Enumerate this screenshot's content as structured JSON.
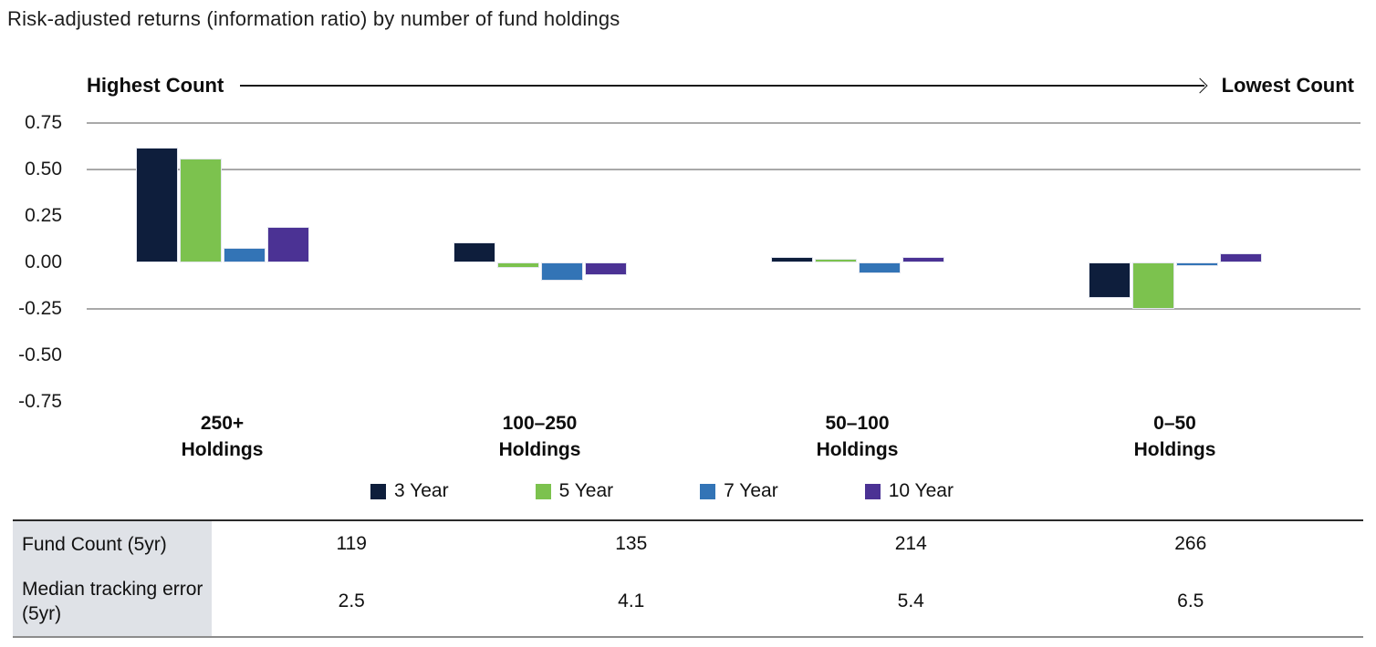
{
  "chart_data": {
    "type": "bar",
    "title": "Risk-adjusted returns (information ratio) by number of fund holdings",
    "axis_header": {
      "left": "Highest Count",
      "right": "Lowest Count"
    },
    "categories": [
      "250+ Holdings",
      "100–250 Holdings",
      "50–100 Holdings",
      "0–50 Holdings"
    ],
    "series": [
      {
        "name": "3 Year",
        "color": "#0e1e3c",
        "values": [
          0.62,
          0.11,
          0.03,
          -0.19
        ]
      },
      {
        "name": "5 Year",
        "color": "#7cc24e",
        "values": [
          0.56,
          -0.03,
          0.02,
          -0.25
        ]
      },
      {
        "name": "7 Year",
        "color": "#3374b6",
        "values": [
          0.08,
          -0.1,
          -0.06,
          -0.02
        ]
      },
      {
        "name": "10 Year",
        "color": "#4b3294",
        "values": [
          0.19,
          -0.07,
          0.03,
          0.05
        ]
      }
    ],
    "ylabel": "",
    "yticks": [
      0.75,
      0.5,
      0.25,
      0,
      -0.25,
      -0.5,
      -0.75
    ],
    "ytick_labels": [
      "0.75",
      "0.50",
      "0.25",
      "0.00",
      "-0.25",
      "-0.50",
      "-0.75"
    ],
    "gridlines_at": [
      0.75,
      0.5,
      -0.25
    ],
    "ylim": [
      -0.85,
      0.8
    ],
    "legend_position": "bottom",
    "table": {
      "rows": [
        {
          "label": "Fund Count (5yr)",
          "values": [
            "119",
            "135",
            "214",
            "266"
          ]
        },
        {
          "label": "Median tracking error (5yr)",
          "values": [
            "2.5",
            "4.1",
            "5.4",
            "6.5"
          ]
        }
      ]
    }
  },
  "colors": {
    "gridline": "#a9a9a9",
    "bar_stroke": "#e3e6ef",
    "table_header_bg": "#dfe2e7",
    "table_border_top": "#2b2b2b",
    "table_border_bottom": "#8c8c8c",
    "arrow": "#1a1a1a",
    "text": "#111111"
  }
}
